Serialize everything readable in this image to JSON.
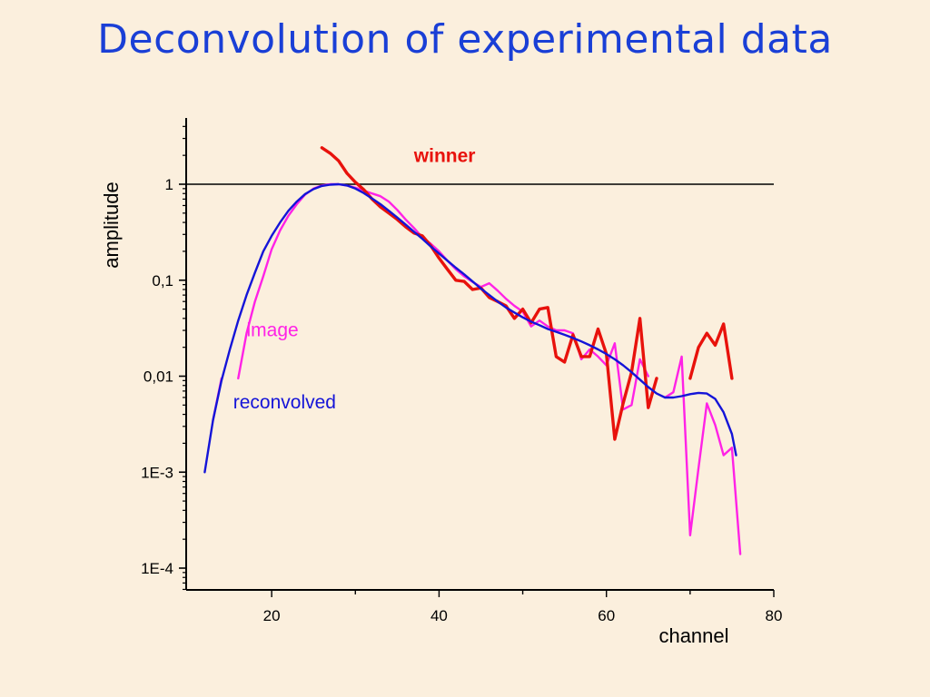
{
  "title": "Deconvolution of experimental data",
  "chart_data": {
    "type": "line",
    "xlabel": "channel",
    "ylabel": "amplitude",
    "xlim": [
      10,
      80
    ],
    "ylim": [
      5e-05,
      5
    ],
    "yscale": "log",
    "x_ticks": [
      20,
      40,
      60,
      80
    ],
    "x_tick_labels": [
      "20",
      "40",
      "60",
      "80"
    ],
    "y_ticks": [
      1,
      0.1,
      0.01,
      0.001,
      0.0001
    ],
    "y_tick_labels": [
      "1",
      "0,1",
      "0,01",
      "1E-3",
      "1E-4"
    ],
    "reference_line_y": 1,
    "series": [
      {
        "name": "winner",
        "color": "#e8120c",
        "segments": [
          [
            [
              26,
              2.4
            ],
            [
              27,
              2.1
            ],
            [
              28,
              1.75
            ],
            [
              29,
              1.3
            ],
            [
              30,
              1.05
            ],
            [
              31,
              0.88
            ],
            [
              32,
              0.7
            ],
            [
              33,
              0.58
            ],
            [
              34,
              0.5
            ],
            [
              35,
              0.43
            ],
            [
              36,
              0.36
            ],
            [
              37,
              0.31
            ],
            [
              38,
              0.29
            ],
            [
              39,
              0.23
            ],
            [
              40,
              0.17
            ],
            [
              41,
              0.13
            ],
            [
              42,
              0.1
            ],
            [
              43,
              0.097
            ],
            [
              44,
              0.08
            ],
            [
              45,
              0.083
            ],
            [
              46,
              0.066
            ],
            [
              47,
              0.06
            ],
            [
              48,
              0.054
            ],
            [
              49,
              0.04
            ],
            [
              50,
              0.05
            ],
            [
              51,
              0.036
            ],
            [
              52,
              0.05
            ],
            [
              53,
              0.052
            ],
            [
              54,
              0.016
            ],
            [
              55,
              0.014
            ],
            [
              56,
              0.027
            ],
            [
              57,
              0.016
            ],
            [
              58,
              0.016
            ],
            [
              59,
              0.031
            ],
            [
              60,
              0.017
            ],
            [
              61,
              0.0022
            ],
            [
              62,
              0.0052
            ],
            [
              63,
              0.011
            ],
            [
              64,
              0.04
            ],
            [
              65,
              0.0047
            ],
            [
              66,
              0.0095
            ]
          ],
          [
            [
              70,
              0.0095
            ],
            [
              71,
              0.02
            ],
            [
              72,
              0.028
            ],
            [
              73,
              0.021
            ],
            [
              74,
              0.035
            ],
            [
              75,
              0.0095
            ]
          ]
        ]
      },
      {
        "name": "image",
        "color": "#ff22e6",
        "segments": [
          [
            [
              13,
              0.0035
            ],
            [
              14,
              0.0095
            ]
          ],
          [
            [
              16,
              0.0095
            ],
            [
              17,
              0.028
            ],
            [
              18,
              0.06
            ],
            [
              19,
              0.11
            ],
            [
              20,
              0.21
            ],
            [
              21,
              0.33
            ],
            [
              22,
              0.47
            ],
            [
              23,
              0.62
            ],
            [
              24,
              0.78
            ],
            [
              25,
              0.9
            ],
            [
              26,
              0.97
            ],
            [
              27,
              1.0
            ],
            [
              28,
              1.0
            ],
            [
              29,
              0.97
            ],
            [
              30,
              0.92
            ],
            [
              31,
              0.86
            ],
            [
              32,
              0.8
            ],
            [
              33,
              0.75
            ],
            [
              34,
              0.66
            ],
            [
              35,
              0.54
            ],
            [
              36,
              0.43
            ],
            [
              37,
              0.35
            ],
            [
              38,
              0.28
            ],
            [
              39,
              0.24
            ],
            [
              40,
              0.2
            ],
            [
              41,
              0.16
            ],
            [
              42,
              0.13
            ],
            [
              43,
              0.11
            ],
            [
              44,
              0.096
            ],
            [
              45,
              0.085
            ],
            [
              46,
              0.093
            ],
            [
              47,
              0.078
            ],
            [
              48,
              0.064
            ],
            [
              49,
              0.054
            ],
            [
              50,
              0.047
            ],
            [
              51,
              0.033
            ],
            [
              52,
              0.038
            ],
            [
              53,
              0.033
            ],
            [
              54,
              0.03
            ],
            [
              55,
              0.03
            ],
            [
              56,
              0.028
            ],
            [
              57,
              0.015
            ],
            [
              58,
              0.019
            ],
            [
              59,
              0.016
            ],
            [
              60,
              0.013
            ],
            [
              61,
              0.022
            ],
            [
              62,
              0.0045
            ],
            [
              63,
              0.005
            ],
            [
              64,
              0.015
            ],
            [
              65,
              0.01
            ]
          ],
          [
            [
              67,
              0.006
            ],
            [
              68,
              0.0068
            ],
            [
              69,
              0.016
            ],
            [
              70,
              0.00022
            ],
            [
              71,
              0.0011
            ],
            [
              72,
              0.0052
            ],
            [
              73,
              0.0031
            ],
            [
              74,
              0.0015
            ],
            [
              75,
              0.0018
            ],
            [
              76,
              0.00014
            ]
          ]
        ]
      },
      {
        "name": "reconvolved",
        "color": "#1414d8",
        "segments": [
          [
            [
              12,
              0.001
            ],
            [
              13,
              0.0035
            ],
            [
              14,
              0.009
            ],
            [
              15,
              0.019
            ],
            [
              16,
              0.038
            ],
            [
              17,
              0.07
            ],
            [
              18,
              0.12
            ],
            [
              19,
              0.2
            ],
            [
              20,
              0.29
            ],
            [
              21,
              0.4
            ],
            [
              22,
              0.53
            ],
            [
              23,
              0.66
            ],
            [
              24,
              0.79
            ],
            [
              25,
              0.89
            ],
            [
              26,
              0.96
            ],
            [
              27,
              0.99
            ],
            [
              28,
              1.0
            ],
            [
              29,
              0.97
            ],
            [
              30,
              0.9
            ],
            [
              31,
              0.81
            ],
            [
              32,
              0.71
            ],
            [
              33,
              0.62
            ],
            [
              34,
              0.53
            ],
            [
              35,
              0.45
            ],
            [
              36,
              0.38
            ],
            [
              37,
              0.32
            ],
            [
              38,
              0.27
            ],
            [
              39,
              0.225
            ],
            [
              40,
              0.19
            ],
            [
              41,
              0.16
            ],
            [
              42,
              0.135
            ],
            [
              43,
              0.115
            ],
            [
              44,
              0.097
            ],
            [
              45,
              0.082
            ],
            [
              46,
              0.07
            ],
            [
              47,
              0.06
            ],
            [
              48,
              0.052
            ],
            [
              49,
              0.046
            ],
            [
              50,
              0.041
            ],
            [
              51,
              0.037
            ],
            [
              52,
              0.034
            ],
            [
              53,
              0.031
            ],
            [
              54,
              0.029
            ],
            [
              55,
              0.027
            ],
            [
              56,
              0.025
            ],
            [
              57,
              0.023
            ],
            [
              58,
              0.021
            ],
            [
              59,
              0.019
            ],
            [
              60,
              0.017
            ],
            [
              61,
              0.015
            ],
            [
              62,
              0.013
            ],
            [
              63,
              0.011
            ],
            [
              64,
              0.0092
            ],
            [
              65,
              0.0077
            ],
            [
              66,
              0.0066
            ],
            [
              67,
              0.006
            ],
            [
              68,
              0.006
            ],
            [
              69,
              0.0062
            ],
            [
              70,
              0.0065
            ],
            [
              71,
              0.0067
            ],
            [
              72,
              0.0066
            ],
            [
              73,
              0.0058
            ],
            [
              74,
              0.0042
            ],
            [
              75,
              0.0025
            ],
            [
              75.5,
              0.0015
            ]
          ]
        ]
      }
    ],
    "annotations": [
      {
        "text": "winner",
        "series": "winner",
        "x": 37,
        "y": 1.7
      },
      {
        "text": "image",
        "series": "image",
        "x": 17,
        "y": 0.026
      },
      {
        "text": "reconvolved",
        "series": "reconvolved",
        "x": 15.4,
        "y": 0.0046
      }
    ]
  }
}
